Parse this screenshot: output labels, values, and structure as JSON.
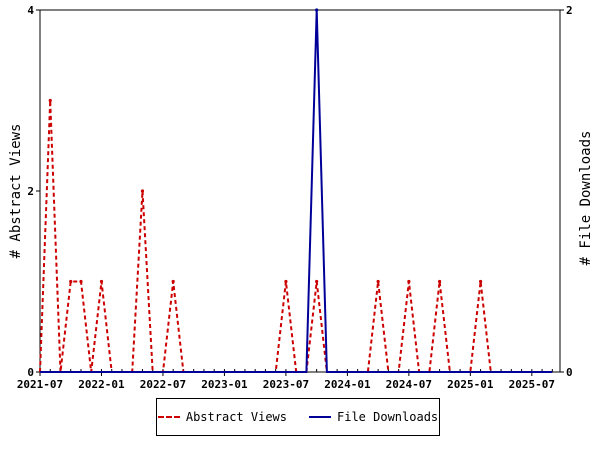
{
  "chart_data": {
    "type": "line",
    "x_tick_labels": [
      "2021-07",
      "2022-01",
      "2022-07",
      "2023-01",
      "2023-07",
      "2024-01",
      "2024-07",
      "2025-01",
      "2025-07"
    ],
    "y_left": {
      "label": "# Abstract Views",
      "ticks": [
        "0",
        "2",
        "4"
      ],
      "ylim": [
        0,
        4
      ]
    },
    "y_right": {
      "label": "# File Downloads",
      "ticks": [
        "0",
        "2"
      ],
      "ylim": [
        0,
        2
      ]
    },
    "x_range": [
      "2021-07",
      "2025-09"
    ],
    "grid": false,
    "legend_position": "bottom",
    "series": [
      {
        "name": "Abstract Views",
        "axis": "left",
        "color": "#cc0000",
        "style": "dashed",
        "x": [
          "2021-07",
          "2021-08",
          "2021-09",
          "2021-10",
          "2021-11",
          "2021-12",
          "2022-01",
          "2022-02",
          "2022-03",
          "2022-04",
          "2022-05",
          "2022-06",
          "2022-07",
          "2022-08",
          "2022-09",
          "2022-10",
          "2022-11",
          "2022-12",
          "2023-01",
          "2023-02",
          "2023-03",
          "2023-04",
          "2023-05",
          "2023-06",
          "2023-07",
          "2023-08",
          "2023-09",
          "2023-10",
          "2023-11",
          "2023-12",
          "2024-01",
          "2024-02",
          "2024-03",
          "2024-04",
          "2024-05",
          "2024-06",
          "2024-07",
          "2024-08",
          "2024-09",
          "2024-10",
          "2024-11",
          "2024-12",
          "2025-01",
          "2025-02",
          "2025-03",
          "2025-04",
          "2025-05",
          "2025-06",
          "2025-07",
          "2025-08",
          "2025-09"
        ],
        "values": [
          0,
          3,
          0,
          1,
          1,
          0,
          1,
          0,
          0,
          0,
          2,
          0,
          0,
          1,
          0,
          0,
          0,
          0,
          0,
          0,
          0,
          0,
          0,
          0,
          1,
          0,
          0,
          1,
          0,
          0,
          0,
          0,
          0,
          1,
          0,
          0,
          1,
          0,
          0,
          1,
          0,
          0,
          0,
          1,
          0,
          0,
          0,
          0,
          0,
          0,
          0
        ]
      },
      {
        "name": "File Downloads",
        "axis": "right",
        "color": "#000099",
        "style": "solid",
        "x": [
          "2021-07",
          "2021-08",
          "2021-09",
          "2021-10",
          "2021-11",
          "2021-12",
          "2022-01",
          "2022-02",
          "2022-03",
          "2022-04",
          "2022-05",
          "2022-06",
          "2022-07",
          "2022-08",
          "2022-09",
          "2022-10",
          "2022-11",
          "2022-12",
          "2023-01",
          "2023-02",
          "2023-03",
          "2023-04",
          "2023-05",
          "2023-06",
          "2023-07",
          "2023-08",
          "2023-09",
          "2023-10",
          "2023-11",
          "2023-12",
          "2024-01",
          "2024-02",
          "2024-03",
          "2024-04",
          "2024-05",
          "2024-06",
          "2024-07",
          "2024-08",
          "2024-09",
          "2024-10",
          "2024-11",
          "2024-12",
          "2025-01",
          "2025-02",
          "2025-03",
          "2025-04",
          "2025-05",
          "2025-06",
          "2025-07",
          "2025-08",
          "2025-09"
        ],
        "values": [
          0,
          0,
          0,
          0,
          0,
          0,
          0,
          0,
          0,
          0,
          0,
          0,
          0,
          0,
          0,
          0,
          0,
          0,
          0,
          0,
          0,
          0,
          0,
          0,
          0,
          0,
          0,
          2,
          0,
          0,
          0,
          0,
          0,
          0,
          0,
          0,
          0,
          0,
          0,
          0,
          0,
          0,
          0,
          0,
          0,
          0,
          0,
          0,
          0,
          0,
          0
        ]
      }
    ]
  },
  "legend": {
    "items": [
      {
        "label": "Abstract Views",
        "color": "#cc0000",
        "style": "dashed"
      },
      {
        "label": "File Downloads",
        "color": "#000099",
        "style": "solid"
      }
    ]
  }
}
